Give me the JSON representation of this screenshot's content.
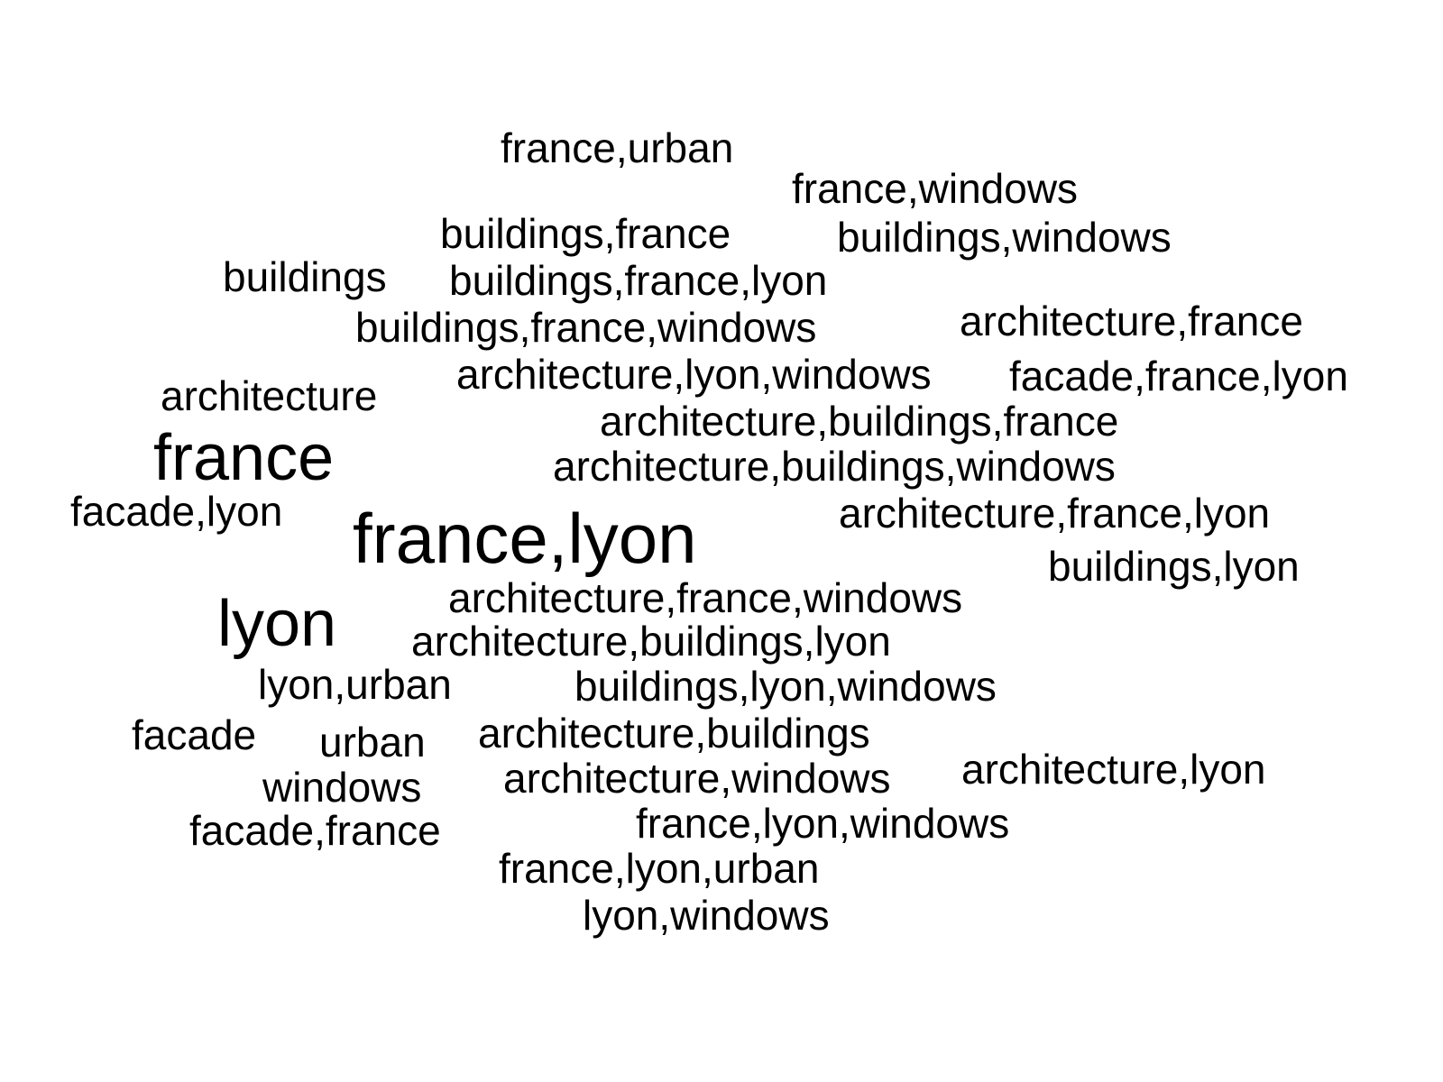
{
  "word_cloud": {
    "words": {
      "france_urban": "france,urban",
      "france_windows": "france,windows",
      "buildings_france": "buildings,france",
      "buildings_windows": "buildings,windows",
      "buildings": "buildings",
      "buildings_france_lyon": "buildings,france,lyon",
      "buildings_france_windows": "buildings,france,windows",
      "architecture_france": "architecture,france",
      "architecture_lyon_windows": "architecture,lyon,windows",
      "facade_france_lyon": "facade,france,lyon",
      "architecture": "architecture",
      "architecture_buildings_france": "architecture,buildings,france",
      "france": "france",
      "architecture_buildings_windows": "architecture,buildings,windows",
      "facade_lyon": "facade,lyon",
      "architecture_france_lyon": "architecture,france,lyon",
      "france_lyon": "france,lyon",
      "buildings_lyon": "buildings,lyon",
      "architecture_france_windows": "architecture,france,windows",
      "lyon": "lyon",
      "architecture_buildings_lyon": "architecture,buildings,lyon",
      "lyon_urban": "lyon,urban",
      "buildings_lyon_windows": "buildings,lyon,windows",
      "facade": "facade",
      "architecture_buildings": "architecture,buildings",
      "urban": "urban",
      "architecture_lyon": "architecture,lyon",
      "architecture_windows": "architecture,windows",
      "windows": "windows",
      "france_lyon_windows": "france,lyon,windows",
      "facade_france": "facade,france",
      "france_lyon_urban": "france,lyon,urban",
      "lyon_windows": "lyon,windows"
    },
    "text_color": "#000000",
    "background_color": "#ffffff"
  }
}
